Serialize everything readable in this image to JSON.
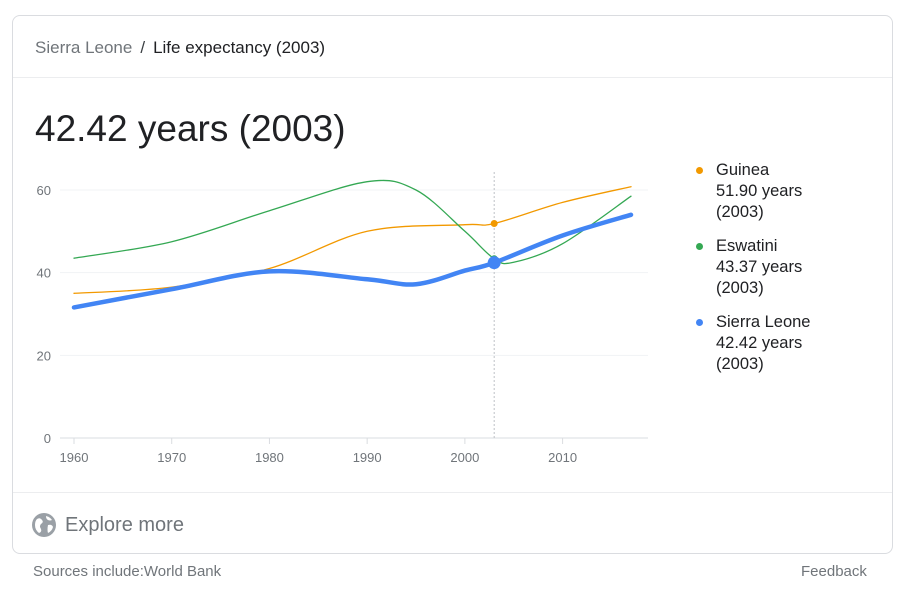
{
  "breadcrumb": {
    "parent": "Sierra Leone",
    "separator": "/",
    "current": "Life expectancy (2003)"
  },
  "headline": "42.42 years (2003)",
  "chart_data": {
    "type": "line",
    "x_ticks": [
      1960,
      1970,
      1980,
      1990,
      2000,
      2010
    ],
    "y_ticks": [
      0,
      20,
      40,
      60
    ],
    "xlim": [
      1960,
      2017
    ],
    "ylim": [
      0,
      60
    ],
    "selected_x": 2003,
    "series": [
      {
        "name": "Guinea",
        "color": "#f29900",
        "x": [
          1960,
          1970,
          1980,
          1990,
          2000,
          2003,
          2010,
          2017
        ],
        "values": [
          35,
          36.5,
          41,
          50,
          51.6,
          51.9,
          57,
          60.8
        ],
        "legend_value": "51.90 years",
        "legend_year": "(2003)",
        "emphasis": false
      },
      {
        "name": "Eswatini",
        "color": "#34a853",
        "x": [
          1960,
          1970,
          1980,
          1990,
          1995,
          2000,
          2003,
          2005,
          2010,
          2017
        ],
        "values": [
          43.5,
          47.5,
          55,
          62,
          60,
          50,
          43.37,
          42.5,
          47,
          58.5
        ],
        "legend_value": "43.37 years",
        "legend_year": "(2003)",
        "emphasis": false
      },
      {
        "name": "Sierra Leone",
        "color": "#4285f4",
        "x": [
          1960,
          1970,
          1980,
          1990,
          1995,
          2000,
          2003,
          2010,
          2017
        ],
        "values": [
          31.6,
          36,
          40.3,
          38.4,
          37.2,
          40.5,
          42.42,
          49,
          54
        ],
        "legend_value": "42.42 years",
        "legend_year": "(2003)",
        "emphasis": true
      }
    ]
  },
  "explore_label": "Explore more",
  "sources": "Sources include:World Bank",
  "feedback": "Feedback"
}
